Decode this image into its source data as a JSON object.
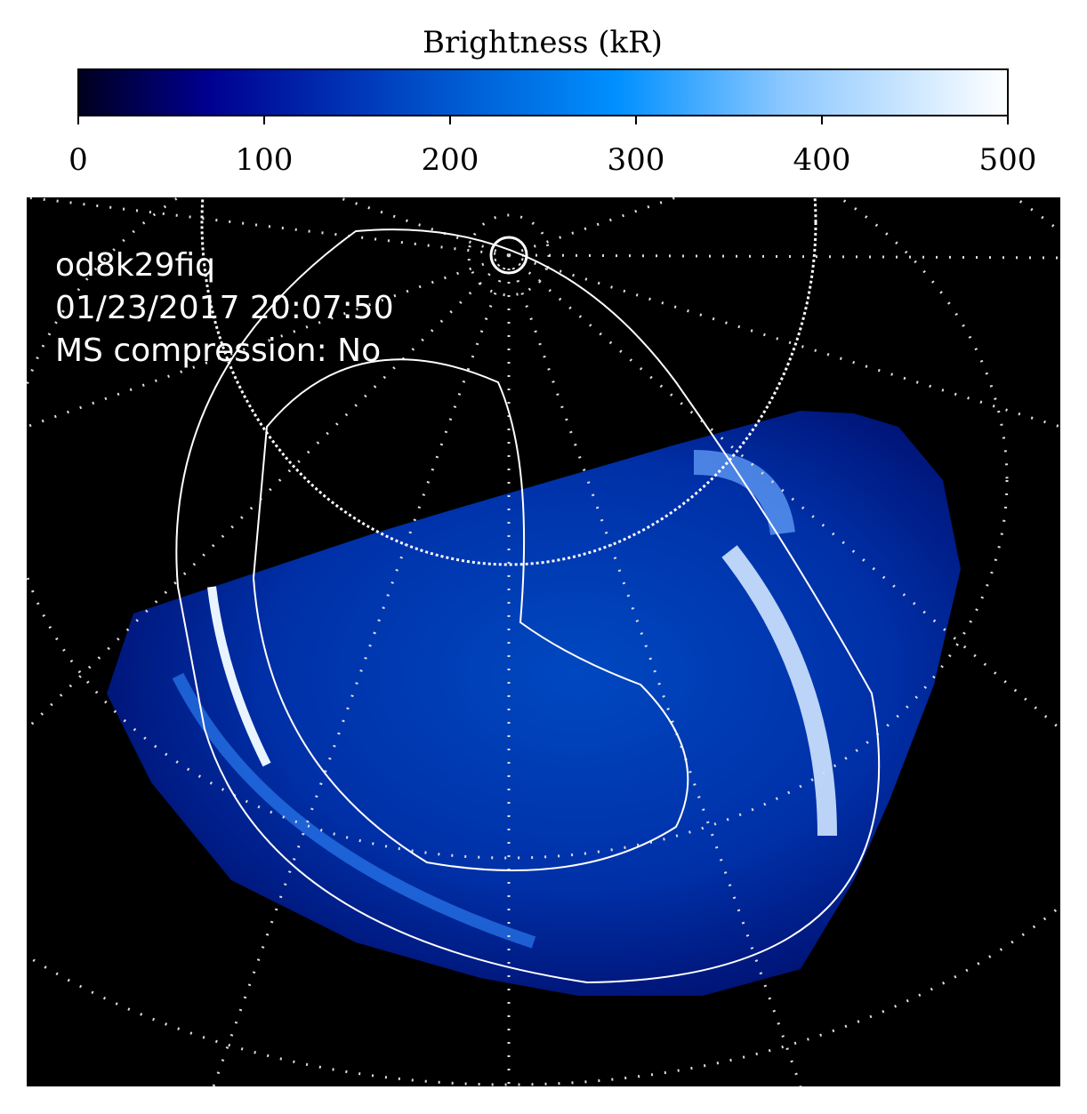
{
  "chart_data": {
    "type": "image",
    "colorbar_label": "Brightness (kR)",
    "clim": [
      0,
      500
    ],
    "cticks": [
      0,
      100,
      200,
      300,
      400,
      500
    ],
    "colormap": [
      {
        "value": 0,
        "color": "#00001e"
      },
      {
        "value": 70,
        "color": "#000090"
      },
      {
        "value": 200,
        "color": "#0058d0"
      },
      {
        "value": 290,
        "color": "#0090ff"
      },
      {
        "value": 380,
        "color": "#8cc8ff"
      },
      {
        "value": 500,
        "color": "#ffffff"
      }
    ],
    "annotations": [
      "od8k29fiq",
      "01/23/2017 20:07:50",
      "MS compression: No"
    ]
  }
}
